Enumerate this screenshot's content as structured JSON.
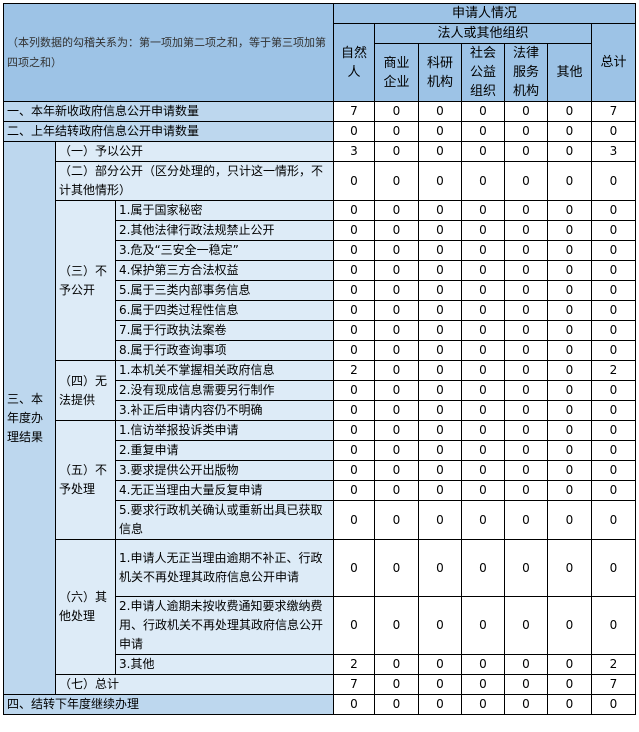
{
  "header": {
    "note": "（本列数据的勾稽关系为：第一项加第二项之和，等于第三项加第四项之和）",
    "applicant": "申请人情况",
    "natural_person": "自然人",
    "legal_org": "法人或其他组织",
    "org_columns": [
      "商业企业",
      "科研机构",
      "社会公益组织",
      "法律服务机构",
      "其他"
    ],
    "total": "总计"
  },
  "rows": {
    "new_requests": {
      "label": "一、本年新收政府信息公开申请数量",
      "values": [
        7,
        0,
        0,
        0,
        0,
        0,
        7
      ]
    },
    "carried_over": {
      "label": "二、上年结转政府信息公开申请数量",
      "values": [
        0,
        0,
        0,
        0,
        0,
        0,
        0
      ]
    },
    "results": {
      "label": "三、本年度办理结果",
      "groups": [
        {
          "label": "（一）予以公开",
          "values": [
            3,
            0,
            0,
            0,
            0,
            0,
            3
          ]
        },
        {
          "label": "（二）部分公开（区分处理的，只计这一情形，不计其他情形）",
          "values": [
            0,
            0,
            0,
            0,
            0,
            0,
            0
          ]
        },
        {
          "label": "（三）不予公开",
          "items": [
            {
              "label": "1.属于国家秘密",
              "values": [
                0,
                0,
                0,
                0,
                0,
                0,
                0
              ]
            },
            {
              "label": "2.其他法律行政法规禁止公开",
              "values": [
                0,
                0,
                0,
                0,
                0,
                0,
                0
              ]
            },
            {
              "label": "3.危及“三安全一稳定”",
              "values": [
                0,
                0,
                0,
                0,
                0,
                0,
                0
              ]
            },
            {
              "label": "4.保护第三方合法权益",
              "values": [
                0,
                0,
                0,
                0,
                0,
                0,
                0
              ]
            },
            {
              "label": "5.属于三类内部事务信息",
              "values": [
                0,
                0,
                0,
                0,
                0,
                0,
                0
              ]
            },
            {
              "label": "6.属于四类过程性信息",
              "values": [
                0,
                0,
                0,
                0,
                0,
                0,
                0
              ]
            },
            {
              "label": "7.属于行政执法案卷",
              "values": [
                0,
                0,
                0,
                0,
                0,
                0,
                0
              ]
            },
            {
              "label": "8.属于行政查询事项",
              "values": [
                0,
                0,
                0,
                0,
                0,
                0,
                0
              ]
            }
          ]
        },
        {
          "label": "（四）无法提供",
          "items": [
            {
              "label": "1.本机关不掌握相关政府信息",
              "values": [
                2,
                0,
                0,
                0,
                0,
                0,
                2
              ]
            },
            {
              "label": "2.没有现成信息需要另行制作",
              "values": [
                0,
                0,
                0,
                0,
                0,
                0,
                0
              ]
            },
            {
              "label": "3.补正后申请内容仍不明确",
              "values": [
                0,
                0,
                0,
                0,
                0,
                0,
                0
              ]
            }
          ]
        },
        {
          "label": "（五）不予处理",
          "items": [
            {
              "label": "1.信访举报投诉类申请",
              "values": [
                0,
                0,
                0,
                0,
                0,
                0,
                0
              ]
            },
            {
              "label": "2.重复申请",
              "values": [
                0,
                0,
                0,
                0,
                0,
                0,
                0
              ]
            },
            {
              "label": "3.要求提供公开出版物",
              "values": [
                0,
                0,
                0,
                0,
                0,
                0,
                0
              ]
            },
            {
              "label": "4.无正当理由大量反复申请",
              "values": [
                0,
                0,
                0,
                0,
                0,
                0,
                0
              ]
            },
            {
              "label": "5.要求行政机关确认或重新出具已获取信息",
              "values": [
                0,
                0,
                0,
                0,
                0,
                0,
                0
              ]
            }
          ]
        },
        {
          "label": "（六）其他处理",
          "items": [
            {
              "label": "1.申请人无正当理由逾期不补正、行政机关不再处理其政府信息公开申请",
              "values": [
                0,
                0,
                0,
                0,
                0,
                0,
                0
              ]
            },
            {
              "label": "2.申请人逾期未按收费通知要求缴纳费用、行政机关不再处理其政府信息公开申请",
              "values": [
                0,
                0,
                0,
                0,
                0,
                0,
                0
              ]
            },
            {
              "label": "3.其他",
              "values": [
                2,
                0,
                0,
                0,
                0,
                0,
                2
              ]
            }
          ]
        },
        {
          "label": "（七）总计",
          "values": [
            7,
            0,
            0,
            0,
            0,
            0,
            7
          ]
        }
      ]
    },
    "next_year": {
      "label": "四、结转下年度继续办理",
      "values": [
        0,
        0,
        0,
        0,
        0,
        0,
        0
      ]
    }
  },
  "colors": {
    "header": "#9dc3e6",
    "level1": "#bdd7ee",
    "level2": "#ddebf7",
    "border": "#000000"
  }
}
